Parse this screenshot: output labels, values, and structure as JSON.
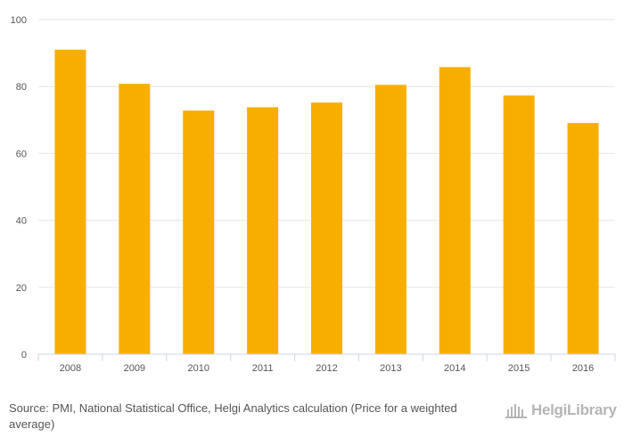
{
  "chart_data": {
    "type": "bar",
    "categories": [
      "2008",
      "2009",
      "2010",
      "2011",
      "2012",
      "2013",
      "2014",
      "2015",
      "2016"
    ],
    "values": [
      91,
      80.8,
      72.8,
      73.8,
      75.2,
      80.5,
      85.8,
      77.3,
      69.1
    ],
    "title": "",
    "xlabel": "",
    "ylabel": "",
    "ylim": [
      0,
      100
    ],
    "yticks": [
      0,
      20,
      40,
      60,
      80,
      100
    ],
    "grid": true,
    "bar_color": "#F7AE00"
  },
  "footer": {
    "source_label": "Source:",
    "source_text": "PMI, National Statistical Office, Helgi Analytics calculation (Price for a weighted average)"
  },
  "logo": {
    "text": "HelgiLibrary",
    "icon": "library-building-icon"
  }
}
